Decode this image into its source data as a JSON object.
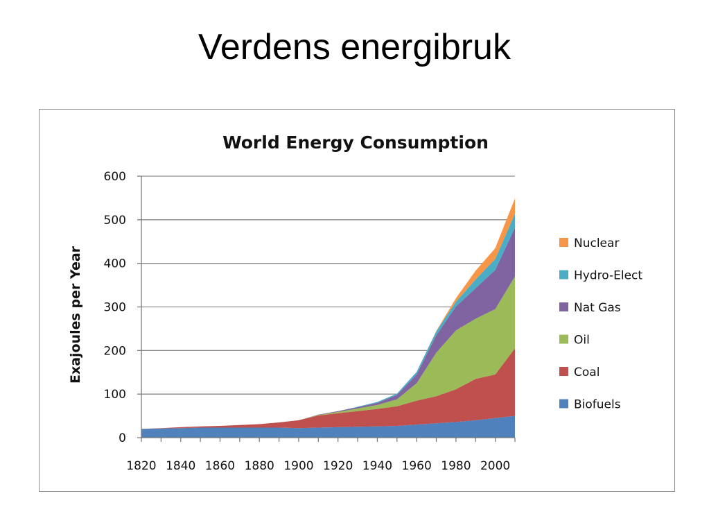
{
  "slide": {
    "title": "Verdens energibruk"
  },
  "chart_data": {
    "type": "area",
    "stacked": true,
    "title": "World Energy Consumption",
    "xlabel": "",
    "ylabel": "Exajoules per Year",
    "ylim": [
      0,
      600
    ],
    "yticks": [
      0,
      100,
      200,
      300,
      400,
      500,
      600
    ],
    "xticks": [
      1820,
      1840,
      1860,
      1880,
      1900,
      1920,
      1940,
      1960,
      1980,
      2000
    ],
    "grid": true,
    "legend_position": "right",
    "x": [
      1820,
      1830,
      1840,
      1850,
      1860,
      1870,
      1880,
      1890,
      1900,
      1910,
      1920,
      1930,
      1940,
      1950,
      1960,
      1970,
      1980,
      1990,
      2000,
      2010
    ],
    "series": [
      {
        "name": "Biofuels",
        "color": "#4f81bd",
        "values": [
          20,
          21,
          22,
          23,
          23,
          23,
          23,
          23,
          22,
          23,
          24,
          25,
          26,
          27,
          30,
          33,
          36,
          40,
          45,
          50
        ]
      },
      {
        "name": "Coal",
        "color": "#c0504d",
        "values": [
          0,
          1,
          2,
          3,
          4,
          6,
          8,
          12,
          18,
          28,
          32,
          36,
          40,
          45,
          55,
          62,
          75,
          95,
          100,
          155
        ]
      },
      {
        "name": "Oil",
        "color": "#9bbb59",
        "values": [
          0,
          0,
          0,
          0,
          0,
          0,
          0,
          0,
          0,
          1,
          3,
          6,
          9,
          16,
          40,
          100,
          135,
          138,
          150,
          165
        ]
      },
      {
        "name": "Nat Gas",
        "color": "#8064a2",
        "values": [
          0,
          0,
          0,
          0,
          0,
          0,
          0,
          0,
          0,
          1,
          2,
          3,
          5,
          10,
          20,
          40,
          55,
          70,
          90,
          112
        ]
      },
      {
        "name": "Hydro-Elect",
        "color": "#4bacc6",
        "values": [
          0,
          0,
          0,
          0,
          0,
          0,
          0,
          0,
          0,
          0,
          0,
          1,
          2,
          3,
          6,
          9,
          11,
          20,
          25,
          32
        ]
      },
      {
        "name": "Nuclear",
        "color": "#f79646",
        "values": [
          0,
          0,
          0,
          0,
          0,
          0,
          0,
          0,
          0,
          0,
          0,
          0,
          0,
          0,
          0,
          1,
          8,
          20,
          25,
          35
        ]
      }
    ]
  }
}
